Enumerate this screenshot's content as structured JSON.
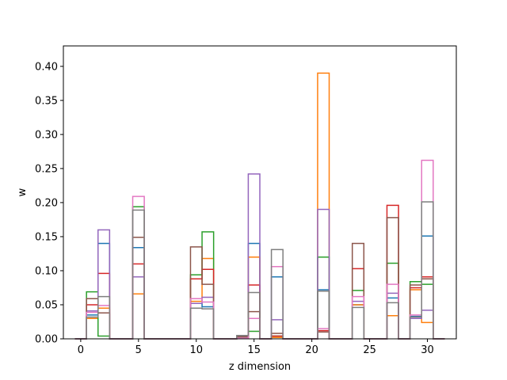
{
  "chart_data": {
    "type": "step",
    "xlabel": "z dimension",
    "ylabel": "w",
    "xlim": [
      -1.5,
      32.5
    ],
    "ylim": [
      0,
      0.43
    ],
    "xticks": [
      0,
      5,
      10,
      15,
      20,
      25,
      30
    ],
    "yticks": [
      0.0,
      0.05,
      0.1,
      0.15,
      0.2,
      0.25,
      0.3,
      0.35,
      0.4
    ],
    "ytick_labels": [
      "0.00",
      "0.05",
      "0.10",
      "0.15",
      "0.20",
      "0.25",
      "0.30",
      "0.35",
      "0.40"
    ],
    "colors": [
      "#1f77b4",
      "#ff7f0e",
      "#2ca02c",
      "#d62728",
      "#9467bd",
      "#8c564b",
      "#e377c2",
      "#7f7f7f"
    ],
    "x": [
      0,
      1,
      2,
      3,
      4,
      5,
      6,
      7,
      8,
      9,
      10,
      11,
      12,
      13,
      14,
      15,
      16,
      17,
      18,
      19,
      20,
      21,
      22,
      23,
      24,
      25,
      26,
      27,
      28,
      29,
      30,
      31
    ],
    "series": [
      {
        "values": [
          0,
          0.035,
          0.14,
          0,
          0,
          0.134,
          0,
          0,
          0,
          0,
          0.052,
          0.047,
          0,
          0,
          0.003,
          0.14,
          0,
          0.091,
          0,
          0,
          0,
          0.072,
          0,
          0,
          0.05,
          0,
          0,
          0.06,
          0,
          0.033,
          0.151,
          0
        ]
      },
      {
        "values": [
          0,
          0.03,
          0.045,
          0,
          0,
          0.066,
          0,
          0,
          0,
          0,
          0.055,
          0.118,
          0,
          0,
          0.001,
          0.12,
          0,
          0.002,
          0,
          0,
          0,
          0.39,
          0,
          0,
          0.05,
          0,
          0,
          0.034,
          0,
          0.072,
          0.024,
          0
        ]
      },
      {
        "values": [
          0,
          0.069,
          0.004,
          0,
          0,
          0.194,
          0,
          0,
          0,
          0,
          0.094,
          0.157,
          0,
          0,
          0.001,
          0.011,
          0,
          0.004,
          0,
          0,
          0,
          0.12,
          0,
          0,
          0.071,
          0,
          0,
          0.111,
          0,
          0.084,
          0.08,
          0
        ]
      },
      {
        "values": [
          0,
          0.05,
          0.096,
          0,
          0,
          0.11,
          0,
          0,
          0,
          0,
          0.088,
          0.102,
          0,
          0,
          0.001,
          0.079,
          0,
          0.004,
          0,
          0,
          0,
          0.012,
          0,
          0,
          0.103,
          0,
          0,
          0.196,
          0,
          0.075,
          0.091,
          0
        ]
      },
      {
        "values": [
          0,
          0.041,
          0.16,
          0,
          0,
          0.091,
          0,
          0,
          0,
          0,
          0.052,
          0.061,
          0,
          0,
          0.003,
          0.242,
          0,
          0.028,
          0,
          0,
          0,
          0.19,
          0,
          0,
          0.055,
          0,
          0,
          0.067,
          0,
          0.03,
          0.042,
          0
        ]
      },
      {
        "values": [
          0,
          0.059,
          0.038,
          0,
          0,
          0.149,
          0,
          0,
          0,
          0,
          0.135,
          0.08,
          0,
          0,
          0.003,
          0.04,
          0,
          0.008,
          0,
          0,
          0,
          0.01,
          0,
          0,
          0.14,
          0,
          0,
          0.178,
          0,
          0.079,
          0.088,
          0
        ]
      },
      {
        "values": [
          0,
          0.039,
          0.049,
          0,
          0,
          0.209,
          0,
          0,
          0,
          0,
          0.059,
          0.054,
          0,
          0,
          0.001,
          0.03,
          0,
          0.106,
          0,
          0,
          0,
          0.015,
          0,
          0,
          0.062,
          0,
          0,
          0.08,
          0,
          0.035,
          0.262,
          0
        ]
      },
      {
        "values": [
          0,
          0.032,
          0.062,
          0,
          0,
          0.189,
          0,
          0,
          0,
          0,
          0.045,
          0.044,
          0,
          0,
          0.005,
          0.068,
          0,
          0.131,
          0,
          0,
          0,
          0.07,
          0,
          0,
          0.046,
          0,
          0,
          0.053,
          0,
          0.032,
          0.201,
          0
        ]
      }
    ]
  }
}
